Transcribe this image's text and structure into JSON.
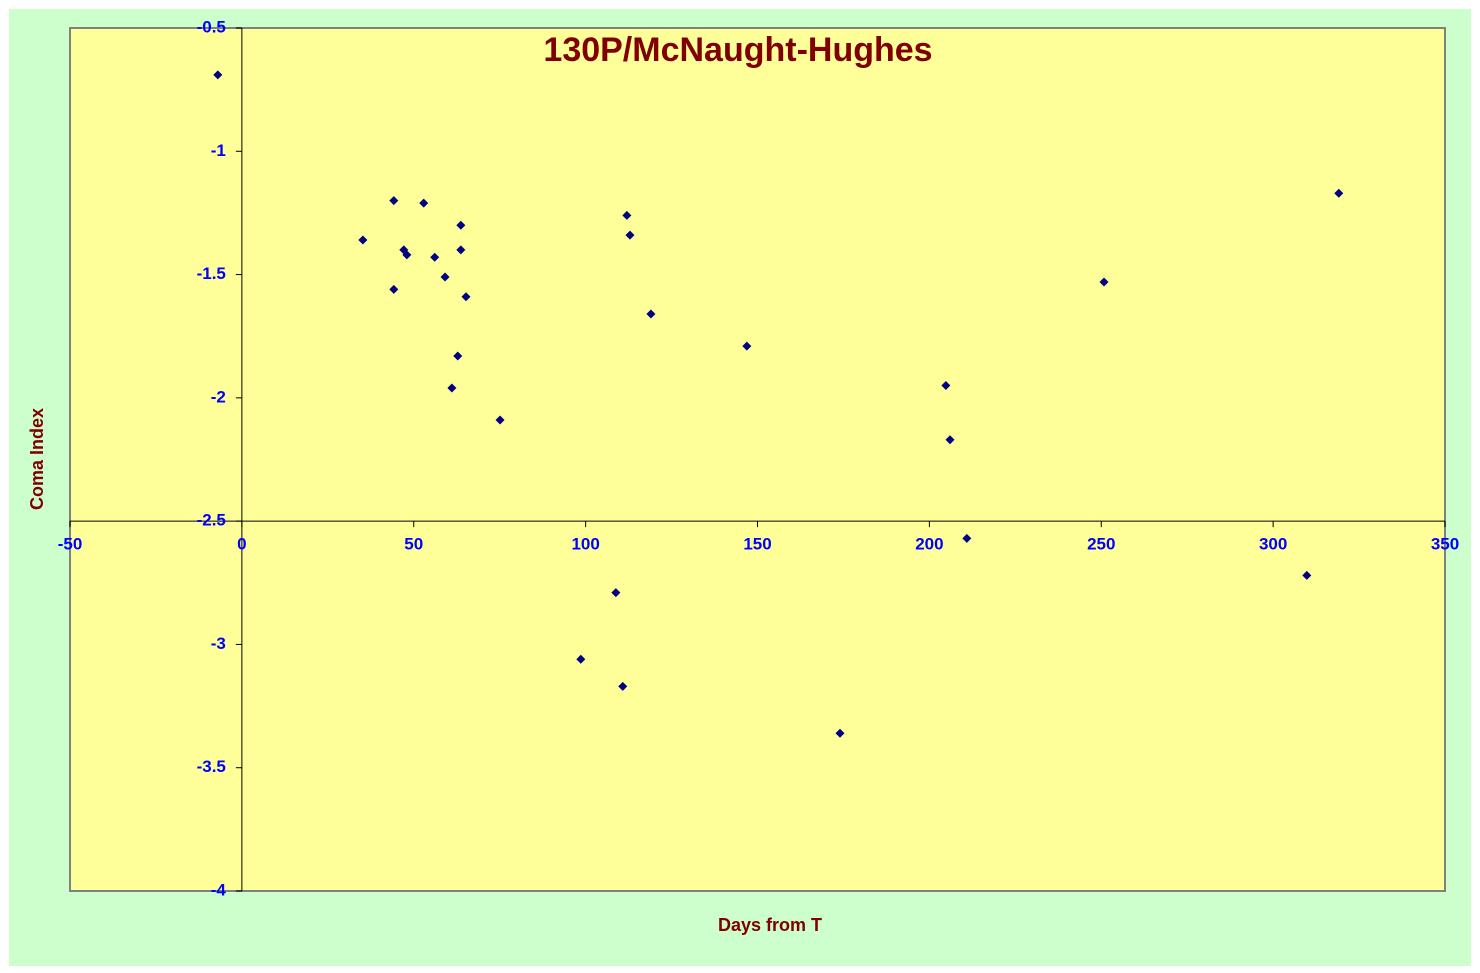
{
  "chart_data": {
    "type": "scatter",
    "title": "130P/McNaught-Hughes",
    "x_label": "Days from T",
    "y_label": "Coma Index",
    "xlim": [
      -50,
      350
    ],
    "ylim": [
      -4,
      -0.5
    ],
    "xticks": [
      -50,
      0,
      50,
      100,
      150,
      200,
      250,
      300,
      350
    ],
    "yticks": [
      -4,
      -3.5,
      -3,
      -2.5,
      -2,
      -1.5,
      -1,
      -0.5
    ],
    "x_axis_at": -2.5,
    "y_axis_at": 0,
    "background": "#ccffcc",
    "plot_background": "#ffff99",
    "series": [
      {
        "color": "#000080",
        "x": [
          -7.0,
          35.2,
          44.2,
          44.2,
          47.1,
          48.0,
          52.9,
          56.1,
          59.1,
          63.7,
          63.7,
          65.2,
          62.8,
          61.1,
          75.1,
          112.0,
          112.9,
          119.0,
          146.9,
          204.8,
          206.0,
          210.9,
          250.8,
          319.1,
          309.8,
          108.8,
          98.6,
          110.8,
          174.0
        ],
        "values": [
          -0.69,
          -1.36,
          -1.2,
          -1.56,
          -1.4,
          -1.42,
          -1.21,
          -1.43,
          -1.51,
          -1.3,
          -1.4,
          -1.59,
          -1.83,
          -1.96,
          -2.09,
          -1.26,
          -1.34,
          -1.66,
          -1.79,
          -1.95,
          -2.17,
          -2.57,
          -1.53,
          -1.17,
          -2.72,
          -2.79,
          -3.06,
          -3.17,
          -3.36
        ]
      }
    ]
  }
}
